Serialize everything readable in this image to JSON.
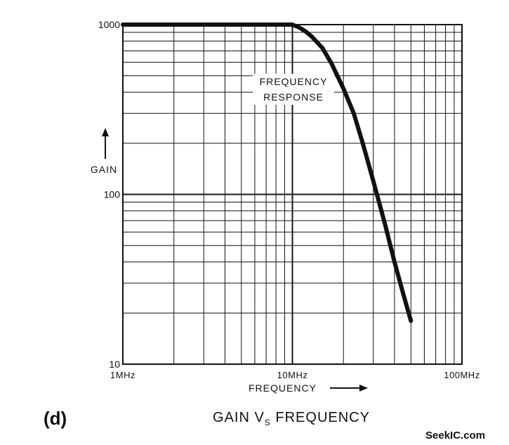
{
  "chart_data": {
    "type": "line",
    "title": "GAIN VS FREQUENCY",
    "title_parts": {
      "pre": "GAIN V",
      "sub": "S",
      "post": " FREQUENCY"
    },
    "panel_label": "(d)",
    "xlabel": "FREQUENCY",
    "ylabel": "GAIN",
    "x_scale": "log",
    "y_scale": "log",
    "xlim": [
      1,
      100
    ],
    "ylim": [
      10,
      1000
    ],
    "x_unit": "MHz",
    "x_ticks": [
      {
        "value": 1,
        "label": "1MHz"
      },
      {
        "value": 10,
        "label": "10MHz"
      },
      {
        "value": 100,
        "label": "100MHz"
      }
    ],
    "y_ticks": [
      {
        "value": 10,
        "label": "10"
      },
      {
        "value": 100,
        "label": "100"
      },
      {
        "value": 1000,
        "label": "1000"
      }
    ],
    "grid": true,
    "series": [
      {
        "name": "FREQUENCY RESPONSE",
        "x": [
          1,
          5,
          10,
          11,
          12,
          13,
          15,
          17,
          20,
          23,
          26,
          30,
          35,
          40,
          45,
          50
        ],
        "y": [
          1000,
          1000,
          1000,
          960,
          910,
          850,
          730,
          590,
          420,
          300,
          200,
          120,
          68,
          40,
          26,
          18
        ]
      }
    ],
    "annotations": [
      {
        "text": "FREQUENCY RESPONSE",
        "lines": [
          "FREQUENCY",
          "RESPONSE"
        ]
      }
    ],
    "color": "#111111"
  },
  "watermark": "SeekIC.com"
}
